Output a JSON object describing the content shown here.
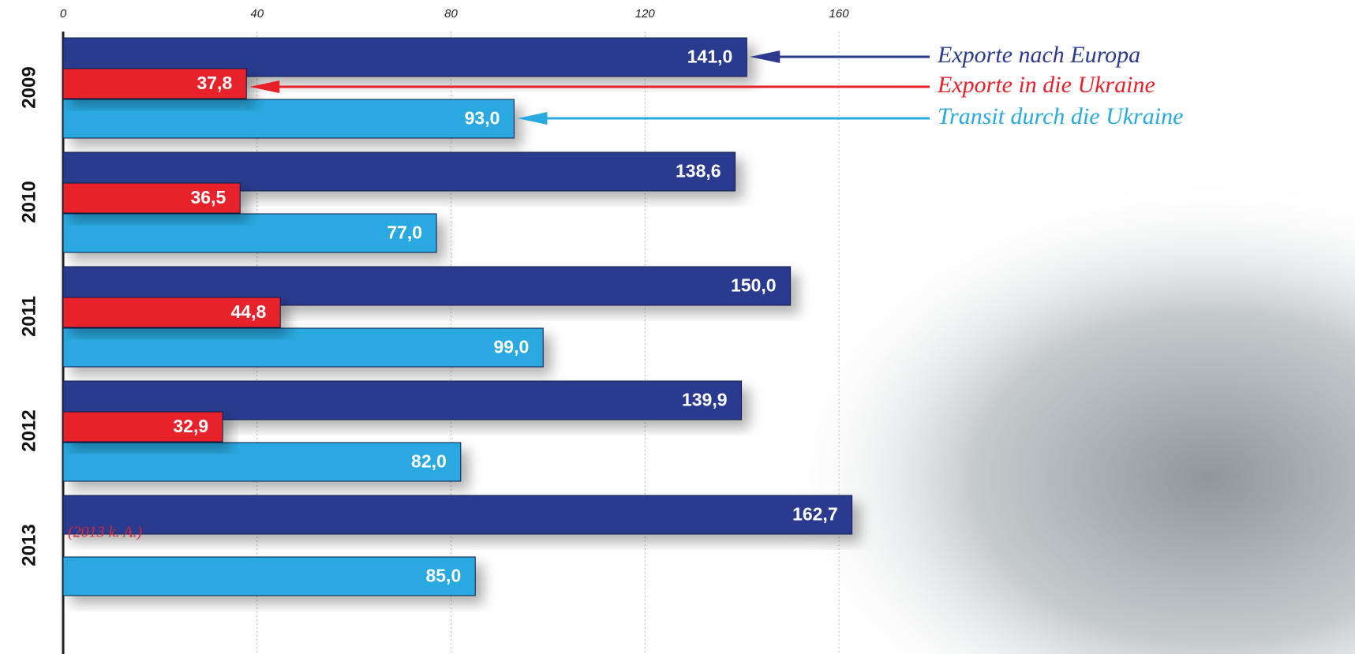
{
  "chart_data": {
    "type": "hbar",
    "categories": [
      "2009",
      "2010",
      "2011",
      "2012",
      "2013"
    ],
    "series": [
      {
        "name": "Exporte nach Europa",
        "color": "#2b3a8f",
        "values": [
          141.0,
          138.6,
          150.0,
          139.9,
          162.7
        ],
        "value_labels": [
          "141,0",
          "138,6",
          "150,0",
          "139,9",
          "162,7"
        ]
      },
      {
        "name": "Exporte in die Ukraine",
        "color": "#e8202a",
        "values": [
          37.8,
          36.5,
          44.8,
          32.9,
          null
        ],
        "value_labels": [
          "37,8",
          "36,5",
          "44,8",
          "32,9",
          null
        ]
      },
      {
        "name": "Transit durch die Ukraine",
        "color": "#2aa9e0",
        "values": [
          93.0,
          77.0,
          99.0,
          82.0,
          85.0
        ],
        "value_labels": [
          "93,0",
          "77,0",
          "99,0",
          "82,0",
          "85,0"
        ]
      }
    ],
    "annotation": "(2013 k. A.)",
    "xlim": [
      0,
      266
    ],
    "xticks": [
      0,
      40,
      80,
      120,
      160
    ],
    "grid": true
  }
}
